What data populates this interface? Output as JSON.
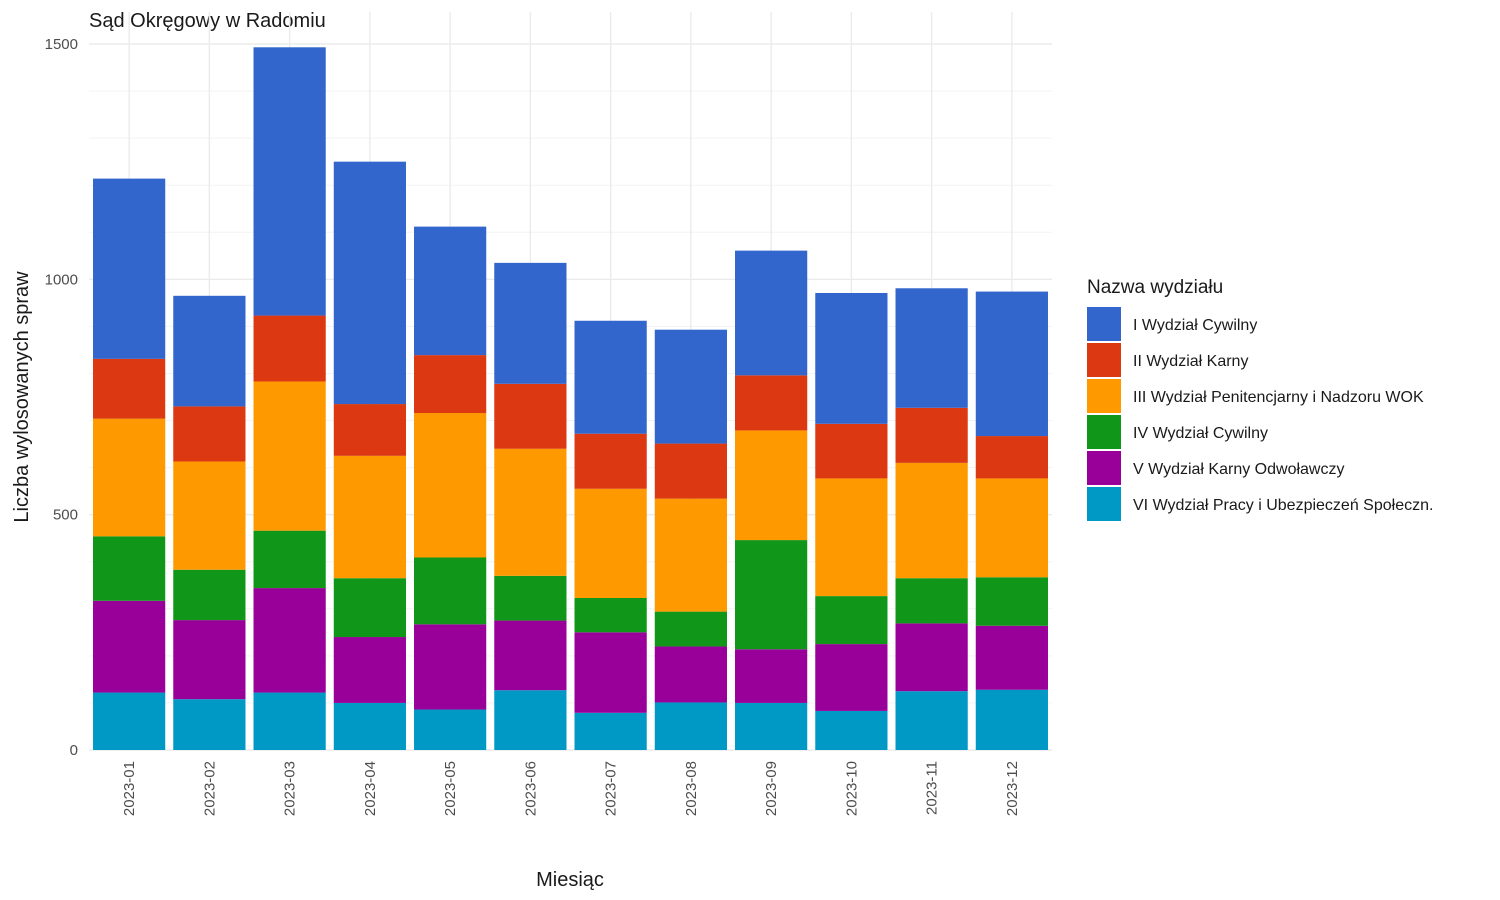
{
  "chart_data": {
    "type": "bar",
    "stacked": true,
    "title": "Sąd Okręgowy w Radomiu",
    "xlabel": "Miesiąc",
    "ylabel": "Liczba wylosowanych spraw",
    "ylim": [
      0,
      1500
    ],
    "yticks": [
      0,
      500,
      1000,
      1500
    ],
    "grid": true,
    "legend_title": "Nazwa wydziału",
    "legend_position": "right",
    "categories": [
      "2023-01",
      "2023-02",
      "2023-03",
      "2023-04",
      "2023-05",
      "2023-06",
      "2023-07",
      "2023-08",
      "2023-09",
      "2023-10",
      "2023-11",
      "2023-12"
    ],
    "series": [
      {
        "name": "VI Wydział Pracy i Ubezpieczeń Społeczn.",
        "color": "#0099C6",
        "values": [
          122,
          108,
          122,
          100,
          86,
          127,
          79,
          101,
          100,
          83,
          125,
          128
        ]
      },
      {
        "name": "V Wydział Karny Odwoławczy",
        "color": "#990099",
        "values": [
          195,
          168,
          222,
          140,
          181,
          148,
          171,
          119,
          114,
          142,
          144,
          136
        ]
      },
      {
        "name": "IV Wydział Cywilny",
        "color": "#109618",
        "values": [
          137,
          107,
          122,
          125,
          142,
          95,
          73,
          74,
          232,
          102,
          96,
          103
        ]
      },
      {
        "name": "III Wydział Penitencjarny i Nadzoru WOK",
        "color": "#FF9900",
        "values": [
          250,
          230,
          317,
          260,
          307,
          270,
          232,
          240,
          233,
          250,
          245,
          210
        ]
      },
      {
        "name": "II Wydział Karny",
        "color": "#DC3912",
        "values": [
          127,
          117,
          140,
          110,
          123,
          138,
          117,
          117,
          117,
          116,
          117,
          90
        ]
      },
      {
        "name": "I Wydział Cywilny",
        "color": "#3366CC",
        "values": [
          383,
          235,
          570,
          515,
          273,
          257,
          240,
          242,
          265,
          278,
          254,
          307
        ]
      }
    ],
    "legend_order": [
      "I Wydział Cywilny",
      "II Wydział Karny",
      "III Wydział Penitencjarny i Nadzoru WOK",
      "IV Wydział Cywilny",
      "V Wydział Karny Odwoławczy",
      "VI Wydział Pracy i Ubezpieczeń Społeczn."
    ]
  }
}
